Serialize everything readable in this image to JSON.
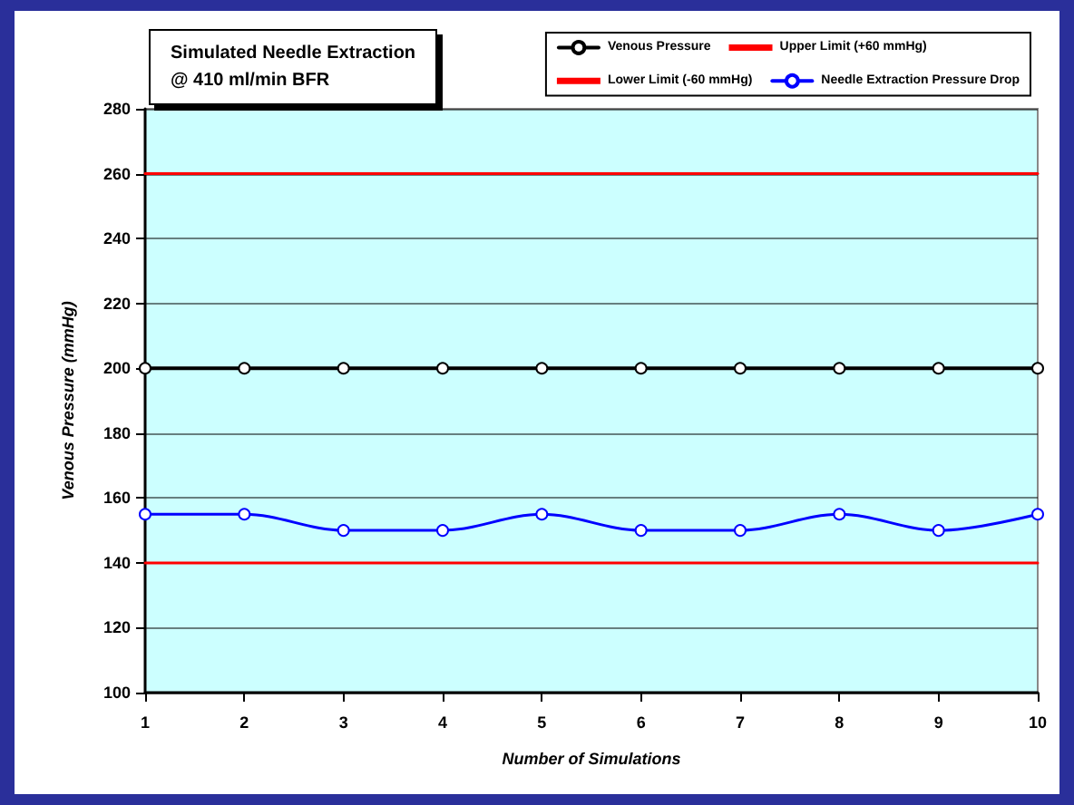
{
  "chart_data": {
    "type": "line",
    "title": "Simulated Needle Extraction\n@ 410 ml/min BFR",
    "xlabel": "Number of Simulations",
    "ylabel": "Venous Pressure (mmHg)",
    "x": [
      1,
      2,
      3,
      4,
      5,
      6,
      7,
      8,
      9,
      10
    ],
    "series": [
      {
        "name": "Venous Pressure",
        "color": "#000000",
        "marker": "circle",
        "values": [
          200,
          200,
          200,
          200,
          200,
          200,
          200,
          200,
          200,
          200
        ]
      },
      {
        "name": "Upper Limit (+60 mmHg)",
        "color": "#ff0000",
        "marker": "none",
        "values": [
          260,
          260,
          260,
          260,
          260,
          260,
          260,
          260,
          260,
          260
        ]
      },
      {
        "name": "Lower Limit (-60 mmHg)",
        "color": "#ff0000",
        "marker": "none",
        "values": [
          140,
          140,
          140,
          140,
          140,
          140,
          140,
          140,
          140,
          140
        ]
      },
      {
        "name": "Needle Extraction Pressure Drop",
        "color": "#0000ff",
        "marker": "circle",
        "values": [
          155,
          155,
          150,
          150,
          155,
          150,
          150,
          155,
          150,
          155
        ]
      }
    ],
    "xlim": [
      1,
      10
    ],
    "xticks": [
      1,
      2,
      3,
      4,
      5,
      6,
      7,
      8,
      9,
      10
    ],
    "ylim": [
      100,
      280
    ],
    "yticks": [
      100,
      120,
      140,
      160,
      180,
      200,
      220,
      240,
      260,
      280
    ],
    "grid": "y",
    "legend": "top right",
    "line_style": "solid"
  }
}
